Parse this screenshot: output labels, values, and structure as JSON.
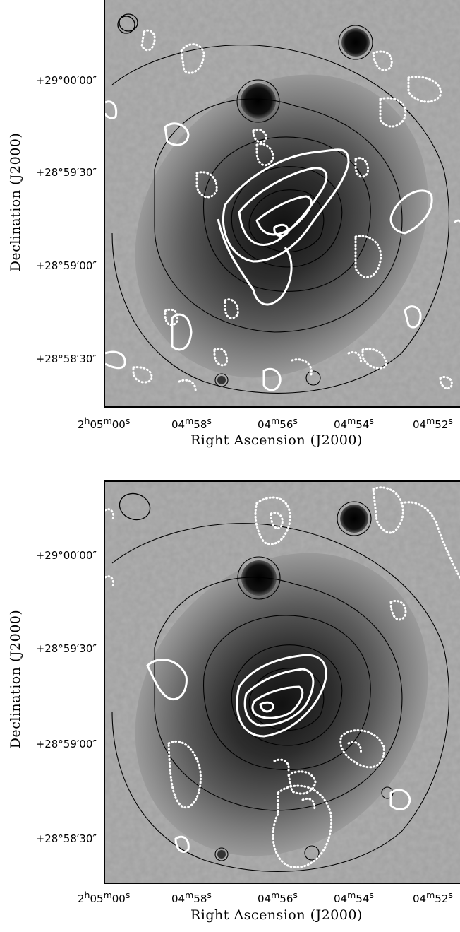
{
  "panels": [
    {
      "id": "top",
      "x_axis_title": "Right Ascension (J2000)",
      "y_axis_title": "Declination (J2000)",
      "y_ticks": [
        "+29°00′00″",
        "+28°59′30″",
        "+28°59′00″",
        "+28°58′30″"
      ],
      "x_ticks": [
        {
          "h": "2",
          "m": "05",
          "s": "00"
        },
        {
          "h": "",
          "m": "04",
          "s": "58"
        },
        {
          "h": "",
          "m": "04",
          "s": "56"
        },
        {
          "h": "",
          "m": "04",
          "s": "54"
        },
        {
          "h": "",
          "m": "04",
          "s": "52"
        }
      ]
    },
    {
      "id": "bottom",
      "x_axis_title": "Right Ascension (J2000)",
      "y_axis_title": "Declination (J2000)",
      "y_ticks": [
        "+29°00′00″",
        "+28°59′30″",
        "+28°59′00″",
        "+28°58′30″"
      ],
      "x_ticks": [
        {
          "h": "2",
          "m": "05",
          "s": "00"
        },
        {
          "h": "",
          "m": "04",
          "s": "58"
        },
        {
          "h": "",
          "m": "04",
          "s": "56"
        },
        {
          "h": "",
          "m": "04",
          "s": "54"
        },
        {
          "h": "",
          "m": "04",
          "s": "52"
        }
      ]
    }
  ],
  "colors": {
    "background_gray": "#9a9a9a",
    "galaxy_core": "#1a1a1a",
    "contour_black": "#000000",
    "contour_white": "#ffffff"
  }
}
